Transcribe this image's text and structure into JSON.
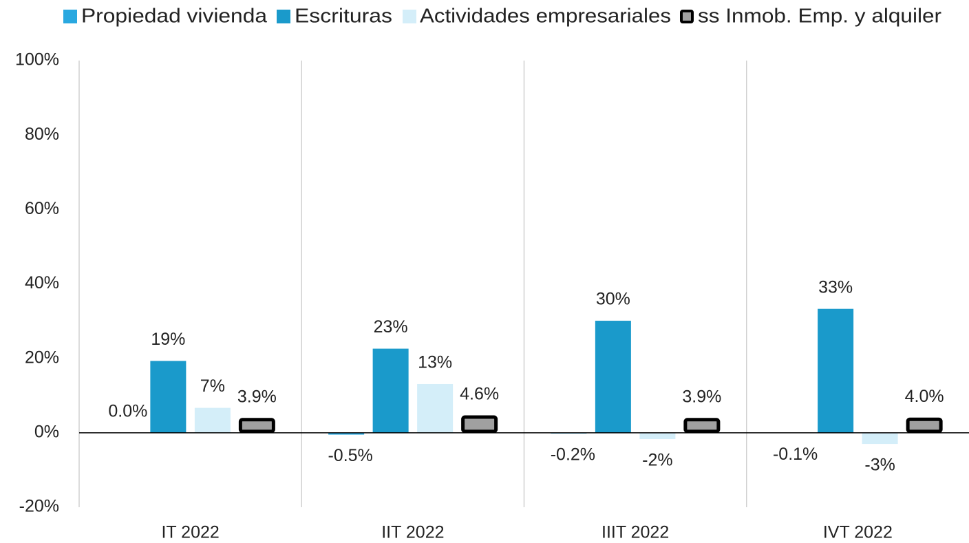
{
  "chart_data": {
    "type": "bar",
    "categories": [
      "IT 2022",
      "IIT 2022",
      "IIIT 2022",
      "IVT 2022"
    ],
    "series": [
      {
        "name": "Propiedad vivienda",
        "color": "#29a8e0",
        "values": [
          0.0,
          -0.5,
          -0.2,
          -0.1
        ],
        "value_labels": [
          "0.0%",
          "-0.5%",
          "-0.2%",
          "-0.1%"
        ]
      },
      {
        "name": "Escrituras",
        "color": "#1a9acb",
        "values": [
          19.3,
          22.6,
          30.1,
          33.3
        ],
        "value_labels": [
          "19%",
          "23%",
          "30%",
          "33%"
        ]
      },
      {
        "name": "Actividades empresariales",
        "color": "#d4eef9",
        "values": [
          6.7,
          13.1,
          -1.7,
          -3.0
        ],
        "value_labels": [
          "7%",
          "13%",
          "-2%",
          "-3%"
        ]
      },
      {
        "name": "ss Inmob. Emp. y alquiler",
        "color": "#a0a0a0",
        "edgecolor": "#000000",
        "values": [
          3.9,
          4.6,
          3.9,
          4.0
        ],
        "value_labels": [
          "3.9%",
          "4.6%",
          "3.9%",
          "4.0%"
        ]
      }
    ],
    "ylim": [
      -20,
      100
    ],
    "yticks": [
      {
        "value": -20,
        "label": "-20%"
      },
      {
        "value": 0,
        "label": "0%"
      },
      {
        "value": 20,
        "label": "20%"
      },
      {
        "value": 40,
        "label": "40%"
      },
      {
        "value": 60,
        "label": "60%"
      },
      {
        "value": 80,
        "label": "80%"
      },
      {
        "value": 100,
        "label": "100%"
      }
    ]
  }
}
